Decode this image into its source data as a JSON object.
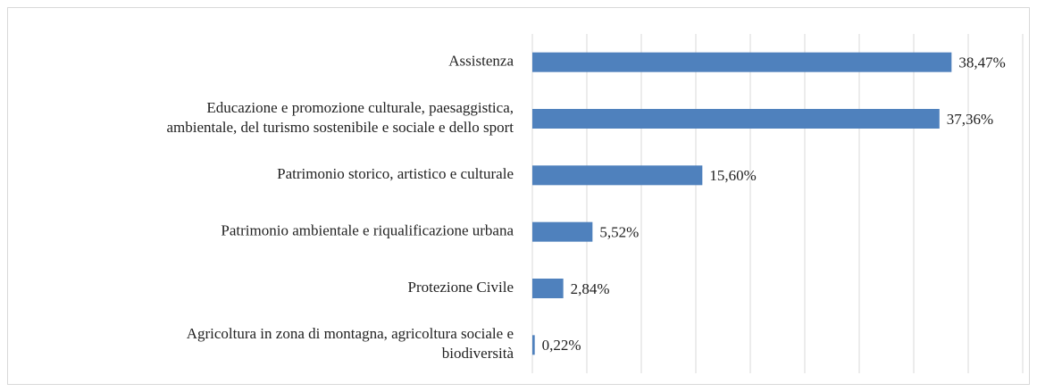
{
  "chart_data": {
    "type": "bar",
    "orientation": "horizontal",
    "categories": [
      [
        "Assistenza"
      ],
      [
        "Educazione e promozione culturale, paesaggistica,",
        "ambientale, del turismo sostenibile e sociale e dello sport"
      ],
      [
        "Patrimonio storico, artistico e culturale"
      ],
      [
        "Patrimonio ambientale e riqualificazione urbana"
      ],
      [
        "Protezione Civile"
      ],
      [
        "Agricoltura in zona di montagna, agricoltura sociale e",
        "biodiversità"
      ]
    ],
    "values": [
      38.47,
      37.36,
      15.6,
      5.52,
      2.84,
      0.22
    ],
    "value_labels": [
      "38,47%",
      "37,36%",
      "15,60%",
      "5,52%",
      "2,84%",
      "0,22%"
    ],
    "color": "#4f81bd",
    "xlim": [
      0,
      45
    ],
    "xticks": [
      0,
      5,
      10,
      15,
      20,
      25,
      30,
      35,
      40,
      45
    ],
    "grid": true
  }
}
